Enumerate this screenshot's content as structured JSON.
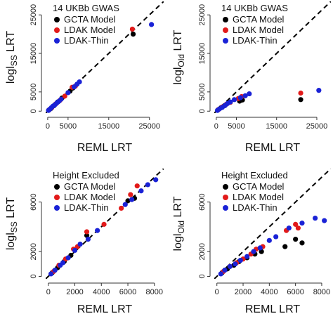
{
  "colors": {
    "GCTA Model": "#000000",
    "LDAK Model": "#e21a1a",
    "LDAK-Thin": "#1a22d6"
  },
  "chart_data": [
    {
      "type": "scatter",
      "title": "14 UKBb GWAS",
      "xlabel": "REML LRT",
      "ylabel_main": "logl",
      "ylabel_sub": "SS",
      "ylabel_tail": " LRT",
      "xlim": [
        -500,
        28500
      ],
      "ylim": [
        -500,
        28500
      ],
      "xticks": [
        "0",
        "5000",
        "15000",
        "25000"
      ],
      "xtick_values": [
        0,
        5000,
        15000,
        25000
      ],
      "yticks": [
        "0",
        "5000",
        "15000",
        "25000"
      ],
      "ytick_values": [
        0,
        5000,
        15000,
        25000
      ],
      "reference_line": "y = x (dashed)",
      "legend": [
        "GCTA Model",
        "LDAK Model",
        "LDAK-Thin"
      ],
      "legend_position": "top-left",
      "series": [
        {
          "name": "GCTA Model",
          "points": [
            [
              300,
              300
            ],
            [
              800,
              700
            ],
            [
              1500,
              1400
            ],
            [
              2500,
              2400
            ],
            [
              3500,
              3400
            ],
            [
              5500,
              5200
            ],
            [
              6200,
              6000
            ],
            [
              21000,
              20000
            ]
          ]
        },
        {
          "name": "LDAK Model",
          "points": [
            [
              400,
              400
            ],
            [
              1000,
              900
            ],
            [
              2000,
              1900
            ],
            [
              3000,
              2800
            ],
            [
              4200,
              3900
            ],
            [
              6000,
              6200
            ],
            [
              6800,
              6500
            ],
            [
              20800,
              21300
            ]
          ]
        },
        {
          "name": "LDAK-Thin",
          "points": [
            [
              200,
              200
            ],
            [
              500,
              500
            ],
            [
              900,
              900
            ],
            [
              1300,
              1300
            ],
            [
              1800,
              1700
            ],
            [
              2300,
              2200
            ],
            [
              2800,
              2600
            ],
            [
              3300,
              3100
            ],
            [
              5000,
              4800
            ],
            [
              6500,
              6300
            ],
            [
              7200,
              7000
            ],
            [
              7800,
              7600
            ],
            [
              25500,
              22500
            ]
          ]
        }
      ]
    },
    {
      "type": "scatter",
      "title": "14 UKBb GWAS",
      "xlabel": "REML LRT",
      "ylabel_main": "logl",
      "ylabel_sub": "Old",
      "ylabel_tail": " LRT",
      "xlim": [
        -500,
        28500
      ],
      "ylim": [
        -500,
        28500
      ],
      "xticks": [
        "0",
        "5000",
        "15000",
        "25000"
      ],
      "xtick_values": [
        0,
        5000,
        15000,
        25000
      ],
      "yticks": [
        "0",
        "5000",
        "15000",
        "25000"
      ],
      "ytick_values": [
        0,
        5000,
        15000,
        25000
      ],
      "reference_line": "y = x (dashed)",
      "legend": [
        "GCTA Model",
        "LDAK Model",
        "LDAK-Thin"
      ],
      "legend_position": "top-left",
      "series": [
        {
          "name": "GCTA Model",
          "points": [
            [
              400,
              300
            ],
            [
              1200,
              900
            ],
            [
              2000,
              1400
            ],
            [
              5800,
              2600
            ],
            [
              6500,
              2900
            ],
            [
              21000,
              3000
            ]
          ]
        },
        {
          "name": "LDAK Model",
          "points": [
            [
              500,
              400
            ],
            [
              1500,
              1100
            ],
            [
              2500,
              1800
            ],
            [
              3500,
              2300
            ],
            [
              5500,
              3300
            ],
            [
              6300,
              3800
            ],
            [
              21000,
              4700
            ]
          ]
        },
        {
          "name": "LDAK-Thin",
          "points": [
            [
              300,
              200
            ],
            [
              800,
              600
            ],
            [
              1500,
              1000
            ],
            [
              2200,
              1500
            ],
            [
              2800,
              2000
            ],
            [
              3500,
              2400
            ],
            [
              4500,
              3000
            ],
            [
              6000,
              3500
            ],
            [
              7200,
              4000
            ],
            [
              8200,
              4500
            ],
            [
              25500,
              5400
            ]
          ]
        }
      ]
    },
    {
      "type": "scatter",
      "title": "Height Excluded",
      "xlabel": "REML LRT",
      "ylabel_main": "logl",
      "ylabel_sub": "SS",
      "ylabel_tail": " LRT",
      "xlim": [
        -200,
        8700
      ],
      "ylim": [
        -200,
        8700
      ],
      "xticks": [
        "0",
        "2000",
        "4000",
        "6000",
        "8000"
      ],
      "xtick_values": [
        0,
        2000,
        4000,
        6000,
        8000
      ],
      "yticks": [
        "0",
        "2000",
        "6000"
      ],
      "ytick_values": [
        0,
        2000,
        6000
      ],
      "reference_line": "y = x (dashed)",
      "legend": [
        "GCTA Model",
        "LDAK Model",
        "LDAK-Thin"
      ],
      "legend_position": "top-left",
      "series": [
        {
          "name": "GCTA Model",
          "points": [
            [
              300,
              300
            ],
            [
              700,
              700
            ],
            [
              1200,
              1200
            ],
            [
              1700,
              1700
            ],
            [
              2900,
              3300
            ],
            [
              6000,
              6100
            ],
            [
              6500,
              6300
            ]
          ]
        },
        {
          "name": "LDAK Model",
          "points": [
            [
              400,
              400
            ],
            [
              800,
              900
            ],
            [
              1300,
              1400
            ],
            [
              1900,
              2200
            ],
            [
              2200,
              2400
            ],
            [
              2900,
              3600
            ],
            [
              4200,
              4200
            ],
            [
              5500,
              5500
            ],
            [
              6200,
              6600
            ],
            [
              6700,
              7300
            ]
          ]
        },
        {
          "name": "LDAK-Thin",
          "points": [
            [
              200,
              200
            ],
            [
              500,
              500
            ],
            [
              900,
              900
            ],
            [
              1100,
              1100
            ],
            [
              1500,
              1500
            ],
            [
              2000,
              2100
            ],
            [
              2400,
              2600
            ],
            [
              3000,
              3000
            ],
            [
              3700,
              3700
            ],
            [
              5800,
              5800
            ],
            [
              6300,
              6200
            ],
            [
              7000,
              6900
            ],
            [
              7500,
              7400
            ],
            [
              8100,
              7800
            ]
          ]
        }
      ]
    },
    {
      "type": "scatter",
      "title": "Height Excluded",
      "xlabel": "REML LRT",
      "ylabel_main": "logl",
      "ylabel_sub": "Old",
      "ylabel_tail": " LRT",
      "xlim": [
        -200,
        8700
      ],
      "ylim": [
        -200,
        8700
      ],
      "xticks": [
        "0",
        "2000",
        "4000",
        "6000",
        "8000"
      ],
      "xtick_values": [
        0,
        2000,
        4000,
        6000,
        8000
      ],
      "yticks": [
        "0",
        "2000",
        "6000"
      ],
      "ytick_values": [
        0,
        2000,
        6000
      ],
      "reference_line": "y = x (dashed)",
      "legend": [
        "GCTA Model",
        "LDAK Model",
        "LDAK-Thin"
      ],
      "legend_position": "top-left",
      "series": [
        {
          "name": "GCTA Model",
          "points": [
            [
              400,
              300
            ],
            [
              800,
              600
            ],
            [
              1300,
              900
            ],
            [
              1700,
              1200
            ],
            [
              2300,
              1500
            ],
            [
              2900,
              1800
            ],
            [
              3400,
              2000
            ],
            [
              5200,
              2400
            ],
            [
              6000,
              3000
            ],
            [
              6500,
              2700
            ]
          ]
        },
        {
          "name": "LDAK Model",
          "points": [
            [
              500,
              400
            ],
            [
              1000,
              800
            ],
            [
              1500,
              1100
            ],
            [
              2000,
              1400
            ],
            [
              2600,
              1800
            ],
            [
              3000,
              2200
            ],
            [
              3500,
              2400
            ],
            [
              5300,
              3700
            ],
            [
              6000,
              4200
            ],
            [
              6200,
              3900
            ]
          ]
        },
        {
          "name": "LDAK-Thin",
          "points": [
            [
              300,
              200
            ],
            [
              600,
              500
            ],
            [
              1000,
              800
            ],
            [
              1400,
              1000
            ],
            [
              1800,
              1300
            ],
            [
              2300,
              1600
            ],
            [
              2800,
              2000
            ],
            [
              3300,
              2300
            ],
            [
              4000,
              2900
            ],
            [
              4500,
              3200
            ],
            [
              5500,
              3900
            ],
            [
              6500,
              4300
            ],
            [
              7500,
              4700
            ],
            [
              8200,
              4500
            ]
          ]
        }
      ]
    }
  ]
}
